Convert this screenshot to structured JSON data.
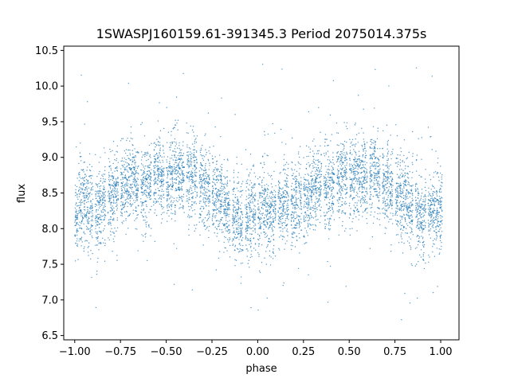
{
  "chart_data": {
    "type": "scatter",
    "title": "1SWASPJ160159.61-391345.3 Period 2075014.375s",
    "xlabel": "phase",
    "ylabel": "flux",
    "xlim": [
      -1.06,
      1.1
    ],
    "ylim": [
      6.44,
      10.56
    ],
    "x_ticks": [
      -1.0,
      -0.75,
      -0.5,
      -0.25,
      0.0,
      0.25,
      0.5,
      0.75,
      1.0
    ],
    "x_tick_labels": [
      "−1.00",
      "−0.75",
      "−0.50",
      "−0.25",
      "0.00",
      "0.25",
      "0.50",
      "0.75",
      "1.00"
    ],
    "y_ticks": [
      6.5,
      7.0,
      7.5,
      8.0,
      8.5,
      9.0,
      9.5,
      10.0,
      10.5
    ],
    "y_tick_labels": [
      "6.5",
      "7.0",
      "7.5",
      "8.0",
      "8.5",
      "9.0",
      "9.5",
      "10.0",
      "10.5"
    ],
    "grid": false,
    "legend": "none",
    "point_color": "#1f77b4",
    "series": [
      {
        "x": [
          -0.99,
          -0.97,
          -0.95,
          -0.93,
          -0.91,
          -0.88,
          -0.86,
          -0.84,
          -0.81,
          -0.79,
          -0.77,
          -0.74,
          -0.72,
          -0.7,
          -0.68,
          -0.66,
          -0.63,
          -0.61,
          -0.59,
          -0.56,
          -0.54,
          -0.52,
          -0.49,
          -0.47,
          -0.45,
          -0.43,
          -0.41,
          -0.38,
          -0.36,
          -0.34,
          -0.31,
          -0.29,
          -0.27,
          -0.24,
          -0.22,
          -0.2,
          -0.18,
          -0.16,
          -0.13,
          -0.11,
          -0.09,
          -0.06,
          -0.04,
          -0.02,
          0.01,
          0.03,
          0.05,
          0.07,
          0.09,
          0.12,
          0.14,
          0.16,
          0.19,
          0.21,
          0.23,
          0.26,
          0.28,
          0.3,
          0.32,
          0.34,
          0.37,
          0.39,
          0.41,
          0.44,
          0.46,
          0.48,
          0.51,
          0.53,
          0.55,
          0.57,
          0.59,
          0.62,
          0.64,
          0.66,
          0.69,
          0.71,
          0.73,
          0.76,
          0.78,
          0.8,
          0.82,
          0.84,
          0.87,
          0.89,
          0.91,
          0.94,
          0.96,
          0.98,
          1.0
        ],
        "y": [
          8.2,
          8.35,
          8.4,
          8.3,
          8.25,
          8.2,
          8.3,
          8.35,
          8.4,
          8.45,
          8.5,
          8.55,
          8.6,
          8.65,
          8.7,
          8.6,
          8.55,
          8.6,
          8.65,
          8.7,
          8.75,
          8.7,
          8.65,
          8.7,
          8.75,
          8.8,
          8.7,
          8.65,
          8.7,
          8.75,
          8.7,
          8.6,
          8.55,
          8.5,
          8.45,
          8.4,
          8.3,
          8.25,
          8.2,
          8.15,
          8.1,
          8.15,
          8.2,
          8.25,
          8.2,
          8.3,
          8.25,
          8.2,
          8.25,
          8.3,
          8.35,
          8.4,
          8.3,
          8.35,
          8.4,
          8.45,
          8.5,
          8.55,
          8.6,
          8.65,
          8.55,
          8.5,
          8.6,
          8.65,
          8.7,
          8.75,
          8.7,
          8.75,
          8.8,
          8.75,
          8.7,
          8.75,
          8.8,
          8.7,
          8.65,
          8.6,
          8.55,
          8.5,
          8.45,
          8.4,
          8.35,
          8.3,
          8.25,
          8.2,
          8.15,
          8.2,
          8.25,
          8.3,
          8.25
        ]
      }
    ]
  }
}
